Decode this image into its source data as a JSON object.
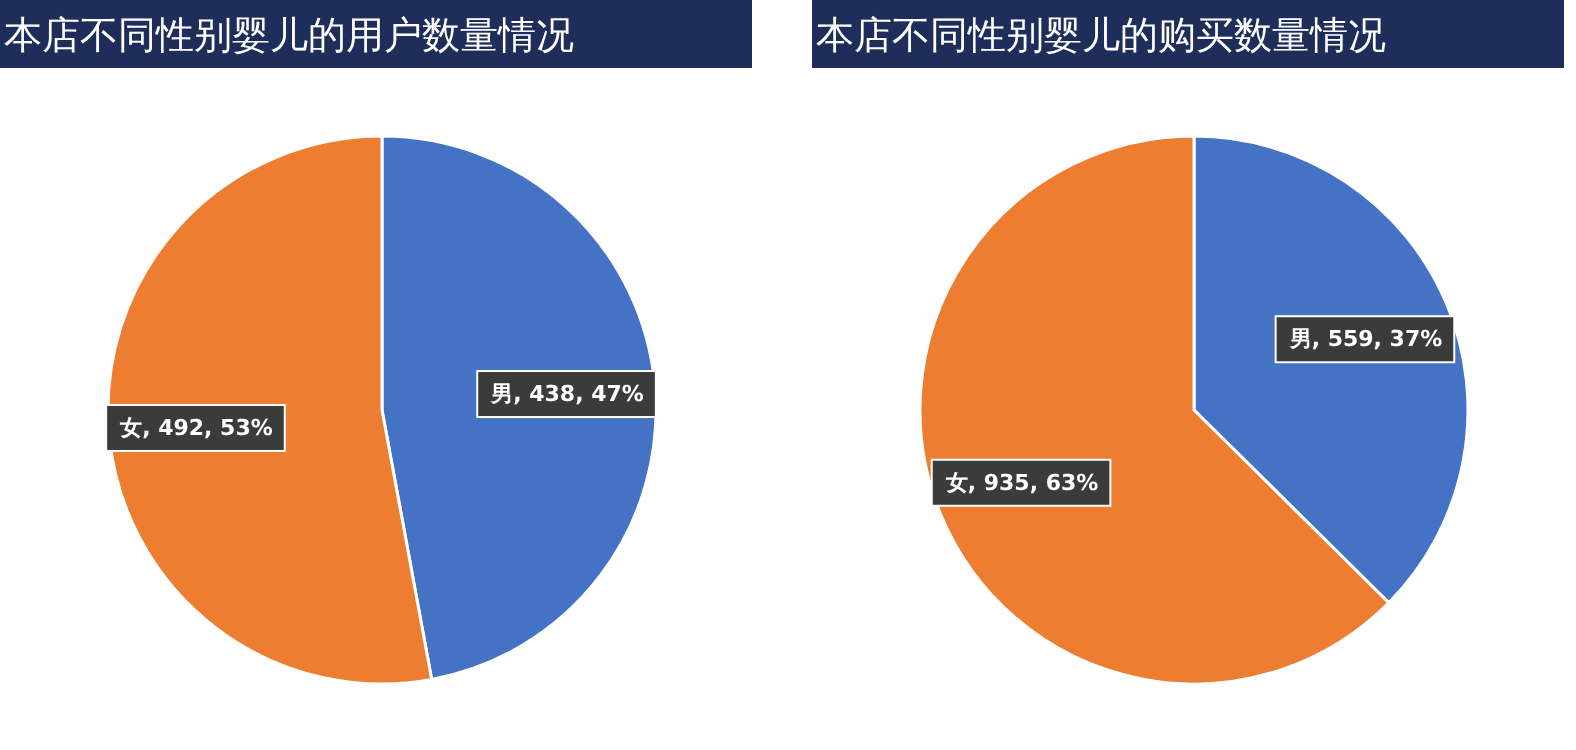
{
  "chart_data": [
    {
      "type": "pie",
      "title": "本店不同性别婴儿的用户数量情况",
      "categories": [
        "男",
        "女"
      ],
      "values": [
        438,
        492
      ],
      "colors": [
        "#4472c4",
        "#ed7d31"
      ],
      "value_labels": [
        ", 438, 47%",
        ", 492, 53%"
      ]
    },
    {
      "type": "pie",
      "title": "本店不同性别婴儿的购买数量情况",
      "categories": [
        "男",
        "女"
      ],
      "values": [
        559,
        935
      ],
      "colors": [
        "#4472c4",
        "#ed7d31"
      ],
      "value_labels": [
        ", 559, 37%",
        ", 935, 63%"
      ]
    }
  ]
}
